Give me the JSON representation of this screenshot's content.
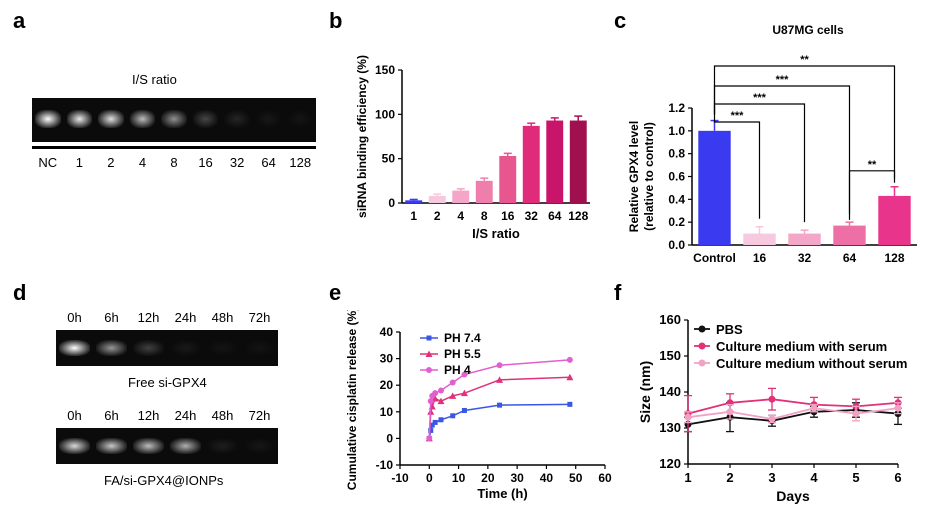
{
  "panel_labels": {
    "a": "a",
    "b": "b",
    "c": "c",
    "d": "d",
    "e": "e",
    "f": "f"
  },
  "gel_a": {
    "title": "I/S ratio",
    "lanes": [
      "NC",
      "1",
      "2",
      "4",
      "8",
      "16",
      "32",
      "64",
      "128"
    ],
    "intensity": [
      1.0,
      0.95,
      0.92,
      0.82,
      0.68,
      0.38,
      0.18,
      0.06,
      0.03
    ]
  },
  "gel_d": {
    "top": {
      "caption": "Free si-GPX4",
      "lanes": [
        "0h",
        "6h",
        "12h",
        "24h",
        "48h",
        "72h"
      ],
      "intensity": [
        1.0,
        0.7,
        0.35,
        0.08,
        0.03,
        0.02
      ]
    },
    "bottom": {
      "caption": "FA/si-GPX4@IONPs",
      "lanes": [
        "0h",
        "6h",
        "12h",
        "24h",
        "48h",
        "72h"
      ],
      "intensity": [
        0.9,
        0.85,
        0.82,
        0.78,
        0.12,
        0.05
      ]
    }
  },
  "chart_data": [
    {
      "id": "b",
      "type": "bar",
      "categories": [
        "1",
        "2",
        "4",
        "8",
        "16",
        "32",
        "64",
        "128"
      ],
      "values": [
        3,
        8,
        14,
        25,
        53,
        87,
        93,
        93
      ],
      "errors": [
        1,
        2,
        2,
        3,
        3,
        3,
        3,
        5
      ],
      "colors": [
        "#3a3af0",
        "#f6c9df",
        "#f3a6c7",
        "#ee7fac",
        "#e85690",
        "#e02a7a",
        "#c8156a",
        "#a0104f"
      ],
      "title": "",
      "xlabel": "I/S ratio",
      "ylabel": "siRNA binding efficiency (%)",
      "ylim": [
        0,
        150
      ],
      "yticks": [
        "0",
        "50",
        "100",
        "150"
      ]
    },
    {
      "id": "c",
      "type": "bar",
      "title": "U87MG cells",
      "categories": [
        "Control",
        "16",
        "32",
        "64",
        "128"
      ],
      "values": [
        1.0,
        0.1,
        0.1,
        0.17,
        0.43
      ],
      "errors": [
        0.09,
        0.06,
        0.03,
        0.03,
        0.08
      ],
      "colors": [
        "#3a3af0",
        "#f6c9df",
        "#f3a6c7",
        "#ee6fa5",
        "#e8348a"
      ],
      "xlabel": "",
      "ylabel": "Relative GPX4 level (relative to control)",
      "ylabel_lines": [
        "Relative GPX4 level",
        "(relative to control)"
      ],
      "ylim": [
        0,
        1.2
      ],
      "yticks": [
        "0.0",
        "0.2",
        "0.4",
        "0.6",
        "0.8",
        "1.0",
        "1.2"
      ],
      "significance": [
        {
          "from": 0,
          "to": 1,
          "label": "***"
        },
        {
          "from": 0,
          "to": 2,
          "label": "***"
        },
        {
          "from": 0,
          "to": 3,
          "label": "***"
        },
        {
          "from": 0,
          "to": 4,
          "label": "**"
        },
        {
          "from": 3,
          "to": 4,
          "label": "**"
        }
      ]
    },
    {
      "id": "e",
      "type": "line",
      "title": "",
      "xlabel": "Time (h)",
      "ylabel": "Cumulative cisplatin release (%)",
      "xlim": [
        -10,
        60
      ],
      "ylim": [
        -10,
        40
      ],
      "xticks": [
        "-10",
        "0",
        "10",
        "20",
        "30",
        "40",
        "50",
        "60"
      ],
      "yticks": [
        "-10",
        "0",
        "10",
        "20",
        "30",
        "40"
      ],
      "legend_position": "top-left",
      "series": [
        {
          "name": "PH 7.4",
          "color": "#3a56e6",
          "marker": "square",
          "x": [
            0,
            0.5,
            1,
            2,
            4,
            8,
            12,
            24,
            48
          ],
          "y": [
            0,
            3,
            5,
            6,
            7,
            8.5,
            10.5,
            12.5,
            12.8
          ]
        },
        {
          "name": "PH 5.5",
          "color": "#e0317a",
          "marker": "triangle",
          "x": [
            0,
            0.5,
            1,
            2,
            4,
            8,
            12,
            24,
            48
          ],
          "y": [
            0,
            10,
            12,
            15,
            14,
            16,
            17,
            22,
            23
          ]
        },
        {
          "name": "PH 4",
          "color": "#e25fd0",
          "marker": "circle",
          "x": [
            0,
            0.5,
            1,
            2,
            4,
            8,
            12,
            24,
            48
          ],
          "y": [
            0,
            14,
            16,
            17,
            18,
            21,
            24,
            27.5,
            29.5
          ]
        }
      ]
    },
    {
      "id": "f",
      "type": "line",
      "title": "",
      "xlabel": "Days",
      "ylabel": "Size (nm)",
      "xlim": [
        1,
        6
      ],
      "ylim": [
        120,
        160
      ],
      "xticks": [
        "1",
        "2",
        "3",
        "4",
        "5",
        "6"
      ],
      "yticks": [
        "120",
        "130",
        "140",
        "150",
        "160"
      ],
      "legend_position": "top-left",
      "series": [
        {
          "name": "PBS",
          "color": "#111111",
          "x": [
            1,
            2,
            3,
            4,
            5,
            6
          ],
          "y": [
            131,
            133,
            132,
            134.5,
            135,
            134
          ],
          "err": [
            2,
            4,
            1.5,
            1.5,
            2,
            3
          ]
        },
        {
          "name": "Culture medium with serum",
          "color": "#e0317a",
          "x": [
            1,
            2,
            3,
            4,
            5,
            6
          ],
          "y": [
            134,
            137,
            138,
            136.5,
            136,
            137
          ],
          "err": [
            5,
            2.5,
            3,
            2,
            2,
            1.5
          ]
        },
        {
          "name": "Culture medium without serum",
          "color": "#f2a2c4",
          "x": [
            1,
            2,
            3,
            4,
            5,
            6
          ],
          "y": [
            133,
            134.5,
            132.5,
            135.5,
            134,
            135.5
          ],
          "err": [
            1.5,
            2,
            1,
            1,
            2,
            1.5
          ]
        }
      ]
    }
  ]
}
